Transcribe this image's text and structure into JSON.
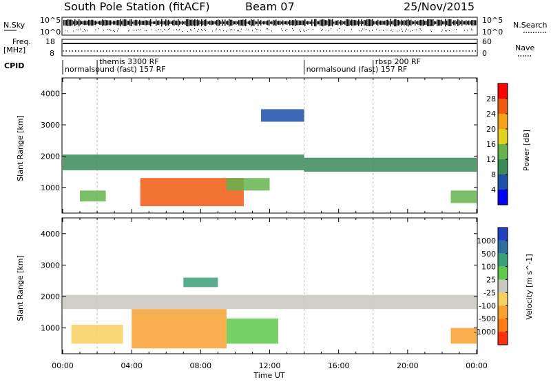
{
  "header": {
    "station": "South Pole Station (fitACF)",
    "beam": "Beam 07",
    "date": "25/Nov/2015"
  },
  "top_panels": {
    "nsky_label": "N.Sky",
    "nsky_ticks": [
      "10^5",
      "10^0"
    ],
    "nsearch_label": "N.Search",
    "freq_label_line1": "Freq.",
    "freq_label_line2": "[MHz]",
    "freq_ticks": [
      "18",
      "8"
    ],
    "nave_ticks": [
      "60",
      "0"
    ],
    "nave_label": "Nave",
    "cpid_label": "CPID",
    "cpid_entries": [
      {
        "label": "normalsound (fast) 157 RF",
        "start_hour": 0.0
      },
      {
        "label": "themis 3300 RF",
        "start_hour": 2.0
      },
      {
        "label": "normalsound (fast) 157 RF",
        "start_hour": 14.0
      },
      {
        "label": "rbsp 200 RF",
        "start_hour": 18.0
      }
    ]
  },
  "axes": {
    "x_label": "Time UT",
    "x_ticks": [
      "00:00",
      "04:00",
      "08:00",
      "12:00",
      "16:00",
      "20:00",
      "00:00"
    ],
    "y_label": "Slant Range [km]",
    "y_ticks": [
      "1000",
      "2000",
      "3000",
      "4000"
    ]
  },
  "power_colorbar": {
    "label": "Power [dB]",
    "ticks": [
      "4",
      "8",
      "12",
      "16",
      "20",
      "24",
      "28"
    ],
    "colors": [
      "#0000ff",
      "#1f4fa8",
      "#3a8a5a",
      "#66b34d",
      "#e0d020",
      "#f5a21a",
      "#f05a10",
      "#ff0000"
    ]
  },
  "velocity_colorbar": {
    "label": "Velocity [m s^-1]",
    "ticks": [
      "1000",
      "500",
      "100",
      "25",
      "-25",
      "-100",
      "-500",
      "-1000"
    ],
    "colors": [
      "#2040c0",
      "#2f6ca0",
      "#3aa07a",
      "#60c84a",
      "#c8c8c0",
      "#f8d060",
      "#f8a030",
      "#ff7a10",
      "#ff3010"
    ]
  },
  "chart_data": {
    "type": "heatmap",
    "x_range_hours": [
      0,
      24
    ],
    "y_range_km": [
      180,
      4500
    ],
    "power_regions": [
      {
        "t0": 0.0,
        "t1": 14.0,
        "r0": 1550,
        "r1": 2050,
        "value_db": 10
      },
      {
        "t0": 14.0,
        "t1": 24.0,
        "r0": 1500,
        "r1": 1950,
        "value_db": 9
      },
      {
        "t0": 4.5,
        "t1": 10.5,
        "r0": 400,
        "r1": 1300,
        "value_db": 27
      },
      {
        "t0": 9.5,
        "t1": 12.0,
        "r0": 900,
        "r1": 1300,
        "value_db": 15
      },
      {
        "t0": 1.0,
        "t1": 2.5,
        "r0": 550,
        "r1": 900,
        "value_db": 14
      },
      {
        "t0": 22.5,
        "t1": 24.0,
        "r0": 500,
        "r1": 900,
        "value_db": 13
      },
      {
        "t0": 11.5,
        "t1": 14.0,
        "r0": 3100,
        "r1": 3500,
        "value_db": 5
      }
    ],
    "velocity_regions": [
      {
        "t0": 0.0,
        "t1": 24.0,
        "r0": 1600,
        "r1": 2050,
        "value_ms": 0
      },
      {
        "t0": 0.5,
        "t1": 3.5,
        "r0": 500,
        "r1": 1100,
        "value_ms": -80
      },
      {
        "t0": 4.0,
        "t1": 9.5,
        "r0": 350,
        "r1": 1600,
        "value_ms": -200
      },
      {
        "t0": 9.5,
        "t1": 12.5,
        "r0": 500,
        "r1": 1300,
        "value_ms": 80
      },
      {
        "t0": 7.0,
        "t1": 9.0,
        "r0": 2300,
        "r1": 2600,
        "value_ms": 150
      },
      {
        "t0": 22.5,
        "t1": 24.0,
        "r0": 500,
        "r1": 1000,
        "value_ms": -300
      }
    ]
  }
}
